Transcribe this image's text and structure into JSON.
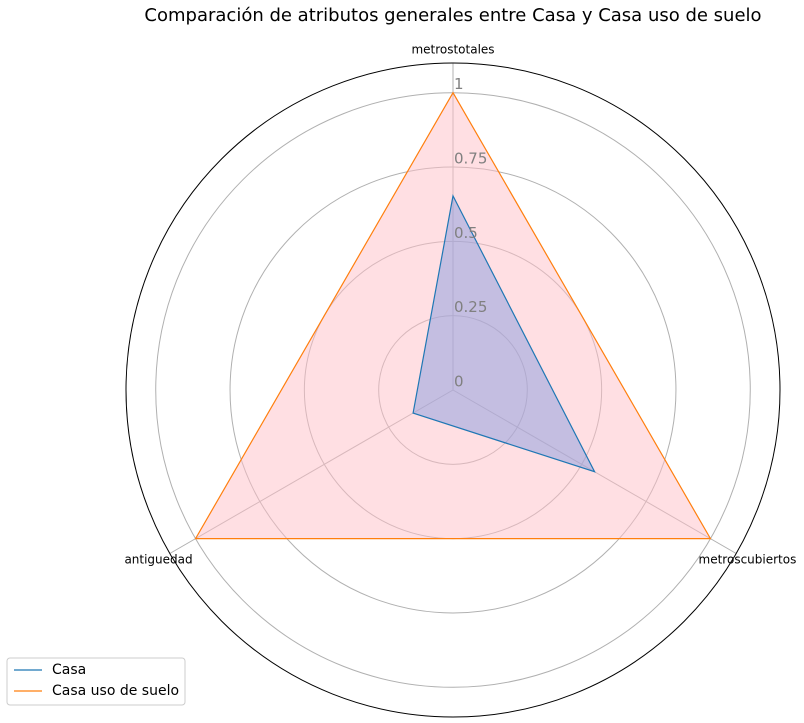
{
  "chart_data": {
    "type": "radar",
    "title": "Comparación de atributos generales entre Casa y Casa uso de suelo",
    "categories": [
      "metrostotales",
      "metroscubiertos",
      "antiguedad"
    ],
    "series": [
      {
        "name": "Casa",
        "color": "#1f77b4",
        "fill": "#8a9ee0",
        "values": [
          0.653,
          0.55,
          0.155
        ]
      },
      {
        "name": "Casa uso de suelo",
        "color": "#ff7f0e",
        "fill": "#ffc0c8",
        "values": [
          1,
          1,
          1
        ]
      }
    ],
    "ylim": [
      0,
      1.1
    ],
    "yticks": [
      0,
      0.25,
      0.5,
      0.75,
      1
    ],
    "grid": true,
    "legend": "lower left"
  }
}
